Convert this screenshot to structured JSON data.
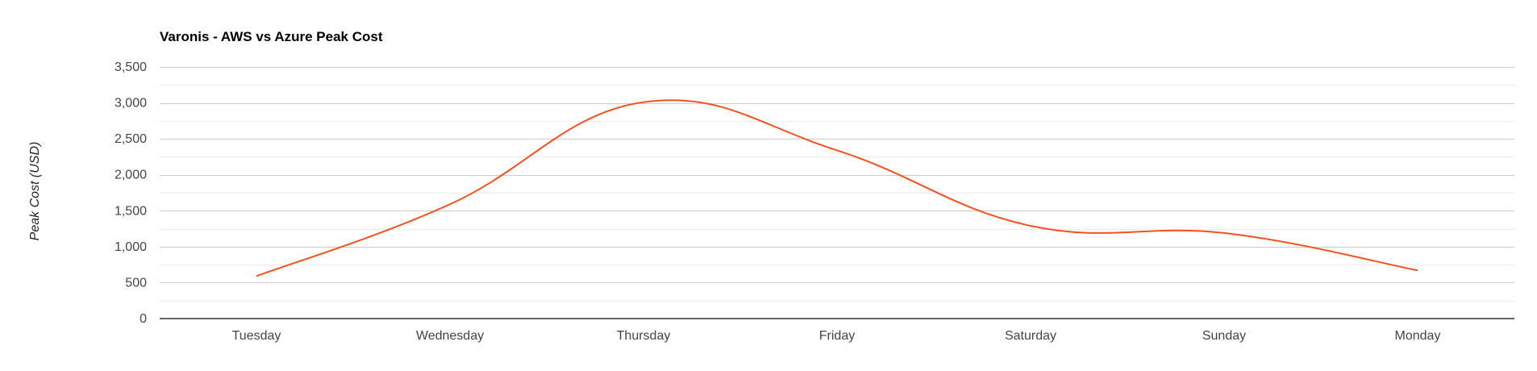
{
  "chart_data": {
    "type": "line",
    "title": "Varonis - AWS vs Azure Peak Cost",
    "xlabel": "",
    "ylabel": "Peak Cost (USD)",
    "ylim": [
      0,
      3500
    ],
    "yticks": [
      0,
      500,
      1000,
      1500,
      2000,
      2500,
      3000,
      3500
    ],
    "ytick_labels": [
      "0",
      "500",
      "1,000",
      "1,500",
      "2,000",
      "2,500",
      "3,000",
      "3,500"
    ],
    "minor_grid_step": 250,
    "grid": true,
    "legend": "none",
    "smooth": true,
    "categories": [
      "Tuesday",
      "Wednesday",
      "Thursday",
      "Friday",
      "Saturday",
      "Sunday",
      "Monday"
    ],
    "series": [
      {
        "color": "#f4511e",
        "values": [
          590,
          1590,
          3010,
          2340,
          1290,
          1190,
          670
        ]
      }
    ]
  }
}
